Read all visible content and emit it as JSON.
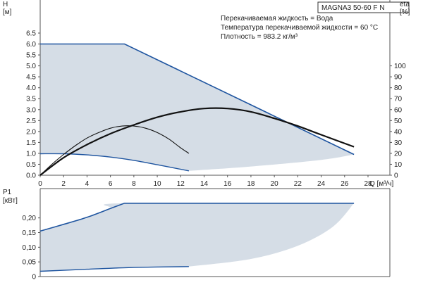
{
  "model_label": "MAGNA3 50-60 F N",
  "info_lines": [
    "Перекачиваемая жидкость = Вода",
    "Температура перекачиваемой жидкости = 60 °C",
    "Плотность = 983.2 кг/м³"
  ],
  "colors": {
    "region_fill": "#d5dde6",
    "envelope_line": "#1f55a0",
    "curve_line": "#111111",
    "axis": "#555555",
    "grid": "#9a9a9a"
  },
  "chart_data": [
    {
      "id": "head-efficiency",
      "type": "line",
      "ylabel_left": "H",
      "ylabel_left_unit": "[м]",
      "ylabel_right": "eta",
      "ylabel_right_unit": "[%]",
      "xlabel": "Q [м³/ч]",
      "xlim": [
        0,
        28
      ],
      "ylim": [
        0,
        6.5
      ],
      "ylim_right": [
        0,
        130
      ],
      "x_ticks": [
        "0",
        "2",
        "4",
        "6",
        "8",
        "10",
        "12",
        "14",
        "16",
        "18",
        "20",
        "22",
        "24",
        "26",
        "28"
      ],
      "y_ticks": [
        "0.0",
        "0.5",
        "1.0",
        "1.5",
        "2.0",
        "2.5",
        "3.0",
        "3.5",
        "4.0",
        "4.5",
        "5.0",
        "5.5",
        "6.0",
        "6.5"
      ],
      "y_ticks_right": [
        "0",
        "10",
        "20",
        "30",
        "40",
        "50",
        "60",
        "70",
        "80",
        "90",
        "100"
      ],
      "grid": false,
      "series": [
        {
          "role": "envelope-upper",
          "style": "blue",
          "x": [
            0,
            7.2,
            26.8
          ],
          "y": [
            6.0,
            6.0,
            0.95
          ]
        },
        {
          "role": "envelope-lower",
          "style": "blue",
          "x": [
            0,
            2,
            4,
            6,
            8,
            10,
            12.7
          ],
          "y": [
            0.98,
            0.98,
            0.93,
            0.83,
            0.68,
            0.48,
            0.2
          ]
        },
        {
          "role": "envelope-lower-boundary",
          "style": "shaded-edge",
          "x": [
            12.7,
            18,
            24,
            26.8
          ],
          "y": [
            0.2,
            0.4,
            0.7,
            0.95
          ]
        },
        {
          "role": "efficiency-max",
          "style": "black",
          "axis": "right",
          "x": [
            0,
            2,
            4,
            6,
            8,
            10,
            12,
            14,
            16,
            18,
            20,
            22,
            24,
            26.8
          ],
          "y": [
            0,
            16,
            28,
            38,
            46,
            53,
            58,
            61,
            61,
            58,
            52,
            45,
            37,
            26
          ]
        },
        {
          "role": "efficiency-min",
          "style": "black",
          "axis": "right",
          "x": [
            0,
            1,
            2,
            3,
            4,
            5,
            6,
            7,
            8,
            9,
            10,
            11,
            12,
            12.7
          ],
          "y": [
            0,
            10,
            19,
            27,
            34,
            39,
            43,
            45,
            45,
            43,
            39,
            33,
            25,
            20
          ]
        }
      ]
    },
    {
      "id": "power",
      "type": "line",
      "ylabel": "P1",
      "ylabel_unit": "[кВт]",
      "xlim": [
        0,
        28
      ],
      "ylim": [
        0,
        0.3
      ],
      "y_ticks": [
        "0",
        "0,05",
        "0,10",
        "0,15",
        "0,20"
      ],
      "grid": false,
      "series": [
        {
          "role": "power-max",
          "style": "blue",
          "x": [
            0,
            2,
            4,
            6,
            7.2,
            26.8
          ],
          "y": [
            0.155,
            0.178,
            0.202,
            0.232,
            0.25,
            0.25
          ]
        },
        {
          "role": "power-min",
          "style": "blue",
          "x": [
            0,
            4,
            8,
            12.7
          ],
          "y": [
            0.018,
            0.025,
            0.031,
            0.034
          ]
        },
        {
          "role": "power-region-edge",
          "style": "shaded-edge",
          "x": [
            12.7,
            18,
            22,
            25,
            26.8
          ],
          "y": [
            0.034,
            0.06,
            0.105,
            0.17,
            0.25
          ]
        }
      ]
    }
  ]
}
